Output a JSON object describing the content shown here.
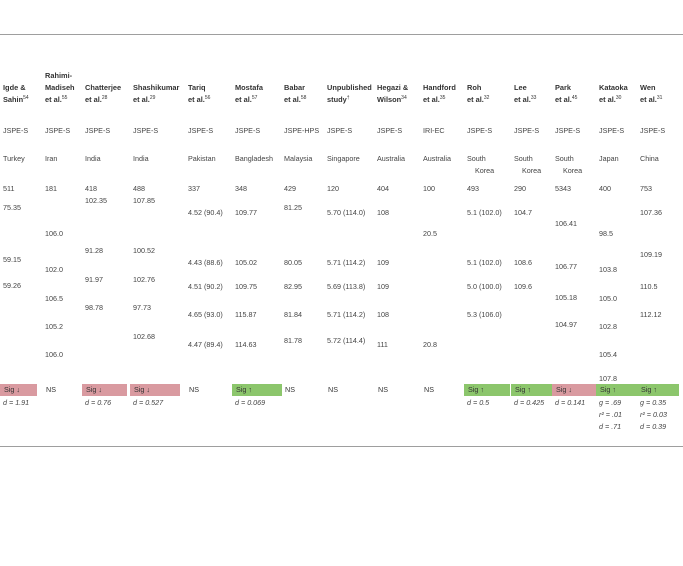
{
  "columns": [
    {
      "header_lines": [
        "Igde &",
        "Sahin"
      ],
      "header_sup": "54",
      "measure": "JSPE-S",
      "country": [
        "Turkey"
      ],
      "n": "511",
      "values": [
        [
          "75.35",
          203
        ],
        [
          "59.15",
          255
        ],
        [
          "59.26",
          281
        ]
      ],
      "sig": {
        "text": "Sig ↓",
        "color": "red"
      },
      "effects": [
        "d = 1.91"
      ]
    },
    {
      "header_lines": [
        "Rahimi-",
        "Madiseh",
        "et al."
      ],
      "header_sup": "55",
      "measure": "JSPE-S",
      "country": [
        "Iran"
      ],
      "n": "181",
      "values": [
        [
          "106.0",
          229
        ],
        [
          "102.0",
          265
        ],
        [
          "106.5",
          294
        ],
        [
          "105.2",
          322
        ],
        [
          "106.0",
          350
        ]
      ],
      "sig": {
        "text": "NS",
        "color": "plain"
      },
      "effects": []
    },
    {
      "header_lines": [
        "Chatterjee",
        "et al."
      ],
      "header_sup": "28",
      "measure": "JSPE-S",
      "country": [
        "India"
      ],
      "n": "418",
      "values": [
        [
          "102.35",
          196
        ],
        [
          "91.28",
          246
        ],
        [
          "91.97",
          275
        ],
        [
          "98.78",
          303
        ]
      ],
      "sig": {
        "text": "Sig ↓",
        "color": "red"
      },
      "effects": [
        "d = 0.76"
      ]
    },
    {
      "header_lines": [
        "Shashikumar",
        "et al."
      ],
      "header_sup": "29",
      "measure": "JSPE-S",
      "country": [
        "India"
      ],
      "n": "488",
      "values": [
        [
          "107.85",
          196
        ],
        [
          "100.52",
          246
        ],
        [
          "102.76",
          275
        ],
        [
          "97.73",
          303
        ],
        [
          "102.68",
          332
        ]
      ],
      "sig": {
        "text": "Sig ↓",
        "color": "red"
      },
      "effects": [
        "d = 0.527"
      ]
    },
    {
      "header_lines": [
        "Tariq",
        "et al."
      ],
      "header_sup": "56",
      "measure": "JSPE-S",
      "country": [
        "Pakistan"
      ],
      "n": "337",
      "values": [
        [
          "4.52 (90.4)",
          208
        ],
        [
          "4.43 (88.6)",
          258
        ],
        [
          "4.51 (90.2)",
          282
        ],
        [
          "4.65 (93.0)",
          310
        ],
        [
          "4.47 (89.4)",
          340
        ]
      ],
      "sig": {
        "text": "NS",
        "color": "plain"
      },
      "effects": []
    },
    {
      "header_lines": [
        "Mostafa",
        "et al."
      ],
      "header_sup": "57",
      "measure": "JSPE-S",
      "country": [
        "Bangladesh"
      ],
      "n": "348",
      "values": [
        [
          "109.77",
          208
        ],
        [
          "105.02",
          258
        ],
        [
          "109.75",
          282
        ],
        [
          "115.87",
          310
        ],
        [
          "114.63",
          340
        ]
      ],
      "sig": {
        "text": "Sig ↑",
        "color": "green"
      },
      "effects": [
        "d = 0.069"
      ]
    },
    {
      "header_lines": [
        "Babar",
        "et al."
      ],
      "header_sup": "58",
      "measure": "JSPE-HPS",
      "country": [
        "Malaysia"
      ],
      "n": "429",
      "values": [
        [
          "81.25",
          203
        ],
        [
          "80.05",
          258
        ],
        [
          "82.95",
          282
        ],
        [
          "81.84",
          310
        ],
        [
          "81.78",
          336
        ]
      ],
      "sig": {
        "text": "NS",
        "color": "plain"
      },
      "effects": []
    },
    {
      "header_lines": [
        "Unpublished",
        "study"
      ],
      "header_sup": "†",
      "measure": "JSPE-S",
      "country": [
        "Singapore"
      ],
      "n": "120",
      "values": [
        [
          "5.70 (114.0)",
          208
        ],
        [
          "5.71 (114.2)",
          258
        ],
        [
          "5.69 (113.8)",
          282
        ],
        [
          "5.71 (114.2)",
          310
        ],
        [
          "5.72 (114.4)",
          336
        ]
      ],
      "sig": {
        "text": "NS",
        "color": "plain"
      },
      "effects": []
    },
    {
      "header_lines": [
        "Hegazi &",
        "Wilson"
      ],
      "header_sup": "34",
      "measure": "JSPE-S",
      "country": [
        "Australia"
      ],
      "n": "404",
      "values": [
        [
          "108",
          208
        ],
        [
          "109",
          258
        ],
        [
          "109",
          282
        ],
        [
          "108",
          310
        ],
        [
          "111",
          340
        ]
      ],
      "sig": {
        "text": "NS",
        "color": "plain"
      },
      "effects": []
    },
    {
      "header_lines": [
        "Handford",
        "et al."
      ],
      "header_sup": "35",
      "measure": "IRI-EC",
      "country": [
        "Australia"
      ],
      "n": "100",
      "values": [
        [
          "20.5",
          229
        ],
        [
          "20.8",
          340
        ]
      ],
      "sig": {
        "text": "NS",
        "color": "plain"
      },
      "effects": []
    },
    {
      "header_lines": [
        "Roh",
        "et al."
      ],
      "header_sup": "32",
      "measure": "JSPE-S",
      "country": [
        "South",
        "Korea"
      ],
      "n": "493",
      "values": [
        [
          "5.1 (102.0)",
          208
        ],
        [
          "5.1 (102.0)",
          258
        ],
        [
          "5.0 (100.0)",
          282
        ],
        [
          "5.3 (106.0)",
          310
        ]
      ],
      "sig": {
        "text": "Sig ↑",
        "color": "green"
      },
      "effects": [
        "d = 0.5"
      ]
    },
    {
      "header_lines": [
        "Lee",
        "et al."
      ],
      "header_sup": "33",
      "measure": "JSPE-S",
      "country": [
        "South",
        "Korea"
      ],
      "n": "290",
      "values": [
        [
          "104.7",
          208
        ],
        [
          "108.6",
          258
        ],
        [
          "109.6",
          282
        ]
      ],
      "sig": {
        "text": "Sig ↑",
        "color": "green"
      },
      "effects": [
        "d = 0.425"
      ]
    },
    {
      "header_lines": [
        "Park",
        "et al."
      ],
      "header_sup": "45",
      "measure": "JSPE-S",
      "country": [
        "South",
        "Korea"
      ],
      "n": "5343",
      "values": [
        [
          "106.41",
          219
        ],
        [
          "106.77",
          262
        ],
        [
          "105.18",
          293
        ],
        [
          "104.97",
          320
        ]
      ],
      "sig": {
        "text": "Sig ↓",
        "color": "red"
      },
      "effects": [
        "d = 0.141"
      ]
    },
    {
      "header_lines": [
        "Kataoka",
        "et al."
      ],
      "header_sup": "30",
      "measure": "JSPE-S",
      "country": [
        "Japan"
      ],
      "n": "400",
      "values": [
        [
          "98.5",
          229
        ],
        [
          "103.8",
          265
        ],
        [
          "105.0",
          294
        ],
        [
          "102.8",
          322
        ],
        [
          "105.4",
          350
        ],
        [
          "107.8",
          374
        ]
      ],
      "sig": {
        "text": "Sig ↑",
        "color": "green"
      },
      "effects": [
        "g = .69",
        "r² = .01",
        "d = .71"
      ]
    },
    {
      "header_lines": [
        "Wen",
        "et al."
      ],
      "header_sup": "31",
      "measure": "JSPE-S",
      "country": [
        "China"
      ],
      "n": "753",
      "values": [
        [
          "107.36",
          208
        ],
        [
          "109.19",
          250
        ],
        [
          "110.5",
          282
        ],
        [
          "112.12",
          310
        ]
      ],
      "sig": {
        "text": "Sig ↑",
        "color": "green"
      },
      "effects": [
        "g = 0.35",
        "r² = 0.03",
        "d = 0.39"
      ]
    }
  ]
}
